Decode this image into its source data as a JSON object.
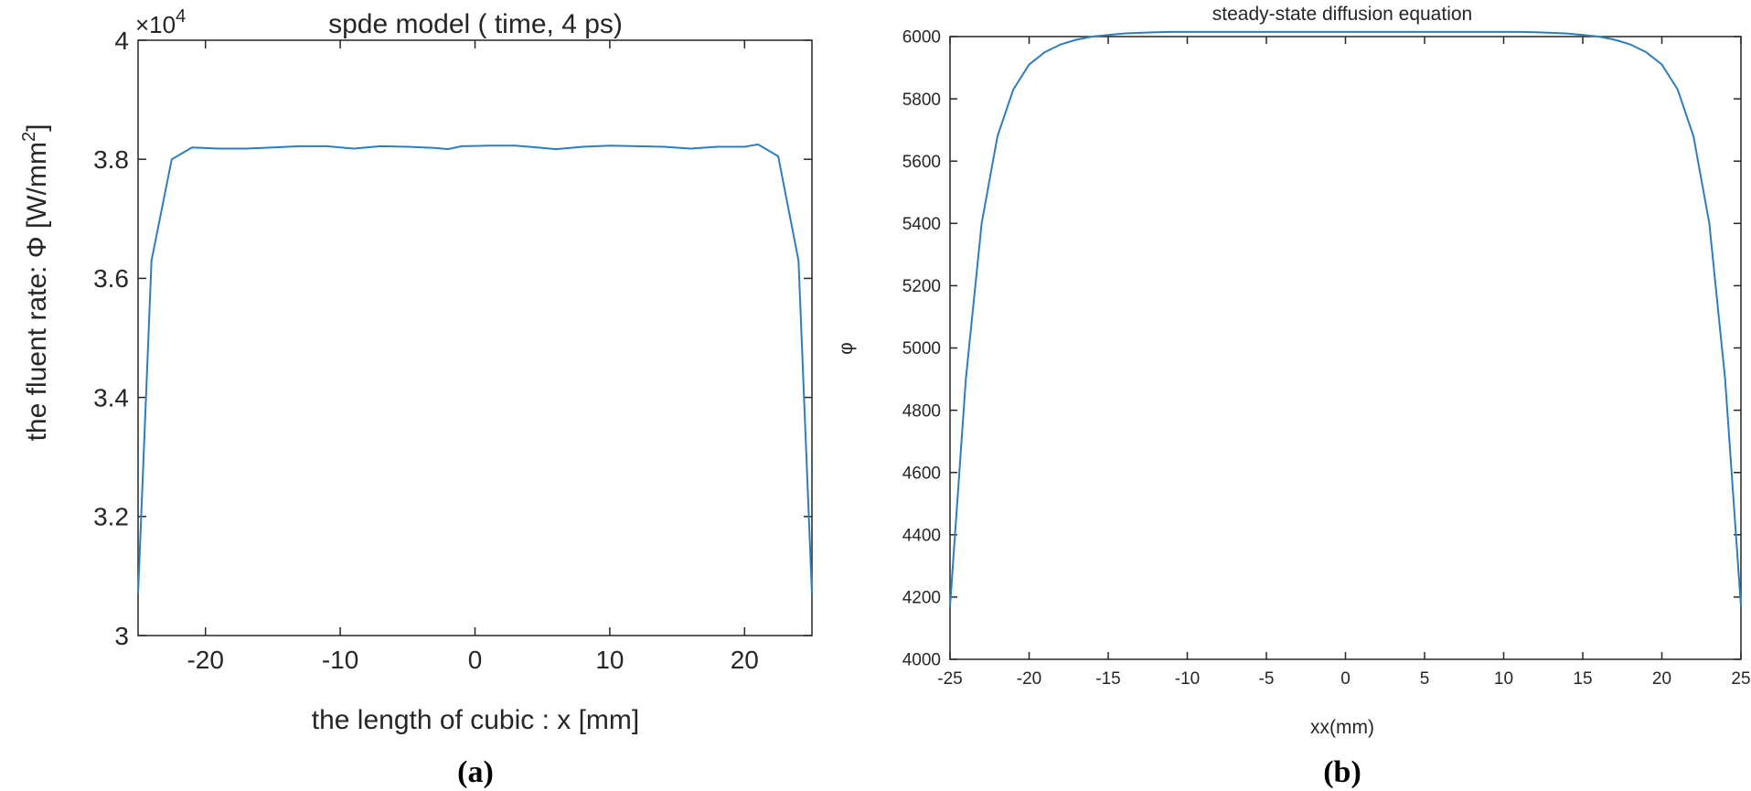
{
  "chart_data": [
    {
      "type": "line",
      "panel_label": "(a)",
      "title": "spde model ( time, 4 ps)",
      "xlabel": "the length of cubic : x [mm]",
      "ylabel_prefix": "the fluent rate:   Φ [W/mm",
      "ylabel_sup": "2",
      "ylabel_suffix": "]",
      "exponent_base": "×10",
      "exponent_power": "4",
      "xlim": [
        -25,
        25
      ],
      "ylim": [
        3.0,
        4.0
      ],
      "x_ticks": [
        "-20",
        "-10",
        "0",
        "10",
        "20"
      ],
      "y_ticks": [
        "3",
        "3.2",
        "3.4",
        "3.6",
        "3.8",
        "4"
      ],
      "line_color": "#2e7ebf",
      "grid": false,
      "series": [
        {
          "x": [
            -25,
            -24,
            -22.5,
            -21,
            -19,
            -17,
            -15,
            -13,
            -11,
            -9,
            -7,
            -5,
            -3,
            -2,
            -1,
            1,
            3,
            5,
            6,
            8,
            10,
            12,
            14,
            16,
            18,
            20,
            21,
            22.5,
            24,
            25
          ],
          "y": [
            3.07,
            3.63,
            3.8,
            3.82,
            3.818,
            3.818,
            3.82,
            3.822,
            3.822,
            3.818,
            3.822,
            3.821,
            3.819,
            3.817,
            3.822,
            3.823,
            3.823,
            3.819,
            3.817,
            3.821,
            3.823,
            3.822,
            3.821,
            3.818,
            3.821,
            3.821,
            3.825,
            3.805,
            3.63,
            3.07
          ]
        }
      ]
    },
    {
      "type": "line",
      "panel_label": "(b)",
      "title": "steady-state diffusion equation",
      "xlabel": "xx(mm)",
      "ylabel": "φ",
      "xlim": [
        -25,
        25
      ],
      "ylim": [
        4000,
        6000
      ],
      "x_ticks": [
        "-25",
        "-20",
        "-15",
        "-10",
        "-5",
        "0",
        "5",
        "10",
        "15",
        "20",
        "25"
      ],
      "y_ticks": [
        "4000",
        "4200",
        "4400",
        "4600",
        "4800",
        "5000",
        "5200",
        "5400",
        "5600",
        "5800",
        "6000"
      ],
      "line_color": "#2e7ebf",
      "grid": false,
      "series": [
        {
          "x": [
            -25,
            -24,
            -23,
            -22,
            -21,
            -20,
            -19,
            -18,
            -17,
            -16,
            -15,
            -14,
            -13,
            -12,
            -11,
            -10,
            -5,
            0,
            5,
            10,
            11,
            12,
            13,
            14,
            15,
            16,
            17,
            18,
            19,
            20,
            21,
            22,
            23,
            24,
            25
          ],
          "y": [
            4170,
            4900,
            5400,
            5680,
            5830,
            5910,
            5950,
            5975,
            5990,
            6000,
            6005,
            6010,
            6012,
            6014,
            6015,
            6015,
            6015,
            6015,
            6015,
            6015,
            6015,
            6014,
            6012,
            6010,
            6005,
            6000,
            5990,
            5975,
            5950,
            5910,
            5830,
            5680,
            5400,
            4900,
            4170
          ]
        }
      ]
    }
  ]
}
